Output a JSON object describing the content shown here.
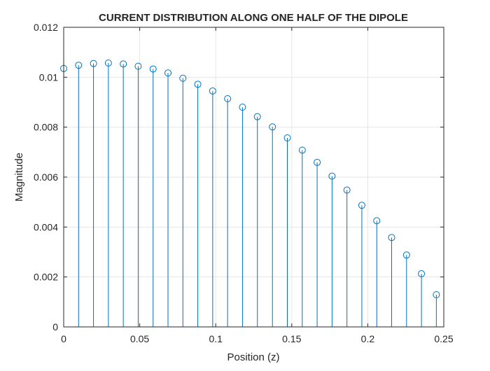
{
  "chart_data": {
    "type": "stem",
    "title": "CURRENT DISTRIBUTION ALONG ONE HALF OF THE DIPOLE",
    "xlabel": "Position (z)",
    "ylabel": "Magnitude",
    "xlim": [
      0,
      0.25
    ],
    "ylim": [
      0,
      0.012
    ],
    "xticks": [
      0,
      0.05,
      0.1,
      0.15,
      0.2,
      0.25
    ],
    "xtick_labels": [
      "0",
      "0.05",
      "0.1",
      "0.15",
      "0.2",
      "0.25"
    ],
    "yticks": [
      0,
      0.002,
      0.004,
      0.006,
      0.008,
      0.01,
      0.012
    ],
    "ytick_labels": [
      "0",
      "0.002",
      "0.004",
      "0.006",
      "0.008",
      "0.01",
      "0.012"
    ],
    "grid": true,
    "series_color": "#0072BD",
    "x": [
      0,
      0.0098,
      0.0196,
      0.0294,
      0.0392,
      0.049,
      0.0588,
      0.0686,
      0.0784,
      0.0882,
      0.098,
      0.1078,
      0.1176,
      0.1274,
      0.1373,
      0.1471,
      0.1569,
      0.1667,
      0.1765,
      0.1863,
      0.1961,
      0.2059,
      0.2157,
      0.2255,
      0.2353,
      0.2451
    ],
    "y": [
      0.01035,
      0.01048,
      0.01055,
      0.01057,
      0.01053,
      0.01044,
      0.01033,
      0.01017,
      0.00996,
      0.00972,
      0.00945,
      0.00914,
      0.0088,
      0.00842,
      0.00801,
      0.00757,
      0.00708,
      0.00659,
      0.00604,
      0.00548,
      0.00487,
      0.00425,
      0.00358,
      0.00288,
      0.00213,
      0.00129
    ]
  }
}
